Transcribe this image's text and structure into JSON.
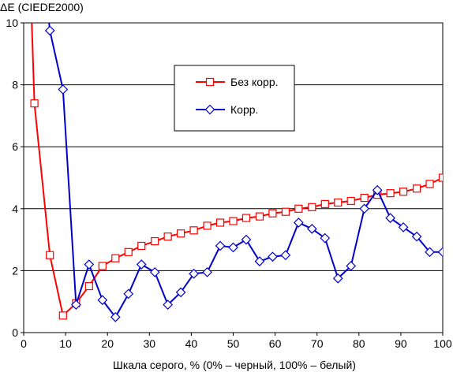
{
  "chart_data": {
    "type": "line",
    "ylabel": "ΔE (CIEDE2000)",
    "xlabel": "Шкала серого, % (0% – черный, 100% – белый)",
    "xlim": [
      0,
      100
    ],
    "ylim": [
      0,
      10
    ],
    "x_ticks": [
      "0",
      "10",
      "20",
      "30",
      "40",
      "50",
      "60",
      "70",
      "80",
      "90",
      "100"
    ],
    "y_ticks": [
      "0",
      "2",
      "4",
      "6",
      "8",
      "10"
    ],
    "grid": "horizontal",
    "legend_position": "top-center",
    "series": [
      {
        "name": "Без корр.",
        "color": "#ff0000",
        "marker": "square",
        "x": [
          0,
          2.56,
          6.25,
          9.38,
          12.5,
          15.6,
          18.8,
          21.9,
          25,
          28.1,
          31.3,
          34.4,
          37.5,
          40.6,
          43.8,
          46.9,
          50,
          53.1,
          56.3,
          59.4,
          62.5,
          65.6,
          68.8,
          71.9,
          75,
          78.1,
          81.3,
          84.4,
          87.5,
          90.6,
          93.8,
          96.9,
          100
        ],
        "y": [
          18,
          7.4,
          2.5,
          0.55,
          0.95,
          1.5,
          2.15,
          2.4,
          2.6,
          2.8,
          2.95,
          3.1,
          3.2,
          3.3,
          3.45,
          3.55,
          3.6,
          3.7,
          3.75,
          3.85,
          3.9,
          4.0,
          4.05,
          4.15,
          4.2,
          4.25,
          4.35,
          4.45,
          4.5,
          4.55,
          4.65,
          4.8,
          5.0
        ]
      },
      {
        "name": "Корр.",
        "color": "#0000cc",
        "marker": "diamond",
        "x": [
          4.5,
          6.25,
          9.38,
          12.5,
          15.6,
          18.8,
          21.9,
          25,
          28.1,
          31.3,
          34.4,
          37.5,
          40.6,
          43.8,
          46.9,
          50,
          53.1,
          56.3,
          59.4,
          62.5,
          65.6,
          68.8,
          71.9,
          75,
          78.1,
          81.3,
          84.4,
          87.5,
          90.6,
          93.8,
          96.9,
          100
        ],
        "y": [
          12,
          9.75,
          7.85,
          0.9,
          2.2,
          1.05,
          0.5,
          1.25,
          2.2,
          1.95,
          0.9,
          1.3,
          1.9,
          1.95,
          2.8,
          2.75,
          3.0,
          2.3,
          2.45,
          2.5,
          3.55,
          3.35,
          3.05,
          1.75,
          2.15,
          4.0,
          4.6,
          3.7,
          3.4,
          3.1,
          2.6,
          2.6
        ]
      }
    ]
  }
}
